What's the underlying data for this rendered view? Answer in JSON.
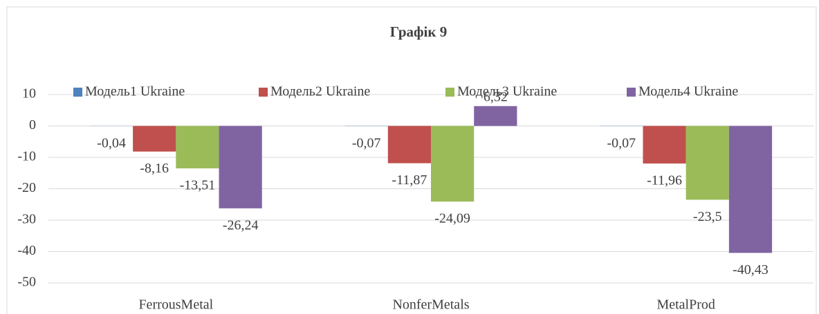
{
  "chart_data": {
    "type": "bar",
    "title": "Графік 9",
    "categories": [
      "FerrousMetal",
      "NonferMetals",
      "MetalProd"
    ],
    "series": [
      {
        "name": "Модель1 Ukraine",
        "color": "#4f81bd",
        "values": [
          -0.04,
          -0.07,
          -0.07
        ],
        "value_labels": [
          "-0,04",
          "-0,07",
          "-0,07"
        ]
      },
      {
        "name": "Модель2 Ukraine",
        "color": "#c0504d",
        "values": [
          -8.16,
          -11.87,
          -11.96
        ],
        "value_labels": [
          "-8,16",
          "-11,87",
          "-11,96"
        ]
      },
      {
        "name": "Модель3 Ukraine",
        "color": "#9bbb59",
        "values": [
          -13.51,
          -24.09,
          -23.5
        ],
        "value_labels": [
          "-13,51",
          "-24,09",
          "-23,5"
        ]
      },
      {
        "name": "Модель4 Ukraine",
        "color": "#8064a2",
        "values": [
          -26.24,
          6.32,
          -40.43
        ],
        "value_labels": [
          "-26,24",
          "6,32",
          "-40,43"
        ]
      }
    ],
    "ylim": [
      -50,
      10
    ],
    "yticks": [
      10,
      0,
      -10,
      -20,
      -30,
      -40,
      -50
    ],
    "grid": true,
    "legend": "top"
  }
}
